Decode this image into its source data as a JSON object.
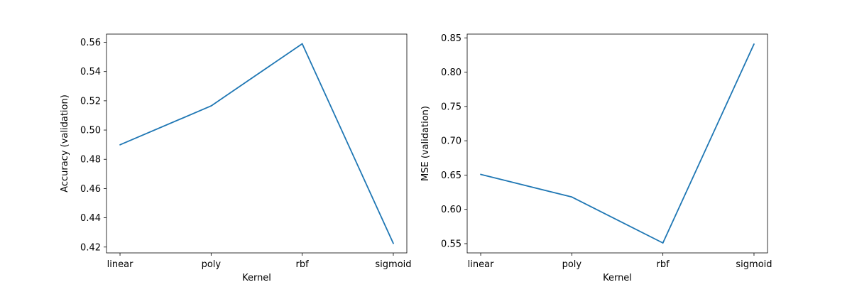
{
  "chart_data": [
    {
      "type": "line",
      "categories": [
        "linear",
        "poly",
        "rbf",
        "sigmoid"
      ],
      "series": [
        {
          "values": [
            0.4899,
            0.5165,
            0.559,
            0.4225
          ]
        }
      ],
      "xlabel": "Kernel",
      "ylabel": "Accuracy (validation)",
      "ylim": [
        0.416,
        0.5656
      ],
      "yticks": [
        "0.42",
        "0.44",
        "0.46",
        "0.48",
        "0.50",
        "0.52",
        "0.54",
        "0.56"
      ],
      "line_color": "#1f77b4",
      "grid": false
    },
    {
      "type": "line",
      "categories": [
        "linear",
        "poly",
        "rbf",
        "sigmoid"
      ],
      "series": [
        {
          "values": [
            0.651,
            0.618,
            0.551,
            0.841
          ]
        }
      ],
      "xlabel": "Kernel",
      "ylabel": "MSE (validation)",
      "ylim": [
        0.5365,
        0.8555
      ],
      "yticks": [
        "0.55",
        "0.60",
        "0.65",
        "0.70",
        "0.75",
        "0.80",
        "0.85"
      ],
      "line_color": "#1f77b4",
      "grid": false
    }
  ]
}
